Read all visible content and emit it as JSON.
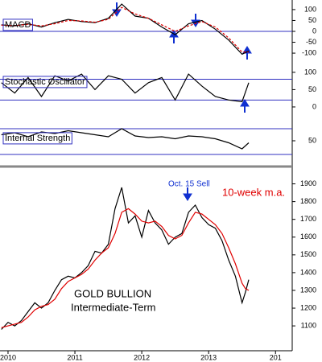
{
  "chart_data": [
    {
      "type": "line",
      "label": "MACD",
      "x": [
        2009.9,
        2010.1,
        2010.3,
        2010.5,
        2010.7,
        2010.9,
        2011.1,
        2011.3,
        2011.5,
        2011.7,
        2011.9,
        2012.1,
        2012.3,
        2012.5,
        2012.7,
        2012.9,
        2013.1,
        2013.3,
        2013.5,
        2013.6
      ],
      "xlim": [
        2009.88,
        2014.25
      ],
      "ylim": [
        -133,
        144
      ],
      "yticks": [
        100,
        50,
        0,
        -50,
        -100
      ],
      "ref_lines": [
        0
      ],
      "series": [
        {
          "color": "#000000",
          "values": [
            30,
            25,
            35,
            20,
            40,
            55,
            45,
            40,
            60,
            125,
            70,
            60,
            20,
            -15,
            35,
            50,
            10,
            -40,
            -105,
            -90
          ]
        },
        {
          "color": "#e00000",
          "dashed": true,
          "values": [
            28,
            27,
            32,
            25,
            35,
            50,
            48,
            42,
            55,
            110,
            80,
            60,
            30,
            0,
            25,
            45,
            20,
            -30,
            -95,
            -95
          ]
        }
      ]
    },
    {
      "type": "line",
      "label": "Stochastic Oscillator",
      "x": [
        2009.9,
        2010.1,
        2010.3,
        2010.5,
        2010.7,
        2010.9,
        2011.1,
        2011.3,
        2011.5,
        2011.7,
        2011.9,
        2012.1,
        2012.3,
        2012.5,
        2012.7,
        2012.9,
        2013.1,
        2013.3,
        2013.5,
        2013.6
      ],
      "xlim": [
        2009.88,
        2014.25
      ],
      "ylim": [
        -28,
        123
      ],
      "yticks": [
        100,
        50,
        0
      ],
      "ref_lines": [
        80,
        20
      ],
      "series": [
        {
          "color": "#000000",
          "values": [
            70,
            40,
            85,
            30,
            90,
            75,
            95,
            50,
            90,
            80,
            40,
            70,
            85,
            20,
            95,
            60,
            30,
            20,
            15,
            70
          ]
        }
      ]
    },
    {
      "type": "line",
      "label": "Internal Strength",
      "x": [
        2009.9,
        2010.1,
        2010.3,
        2010.5,
        2010.7,
        2010.9,
        2011.1,
        2011.3,
        2011.5,
        2011.7,
        2011.9,
        2012.1,
        2012.3,
        2012.5,
        2012.7,
        2012.9,
        2013.1,
        2013.3,
        2013.5,
        2013.6
      ],
      "xlim": [
        2009.88,
        2014.25
      ],
      "ylim": [
        0,
        100
      ],
      "yticks": [
        50
      ],
      "ref_lines": [
        80,
        16
      ],
      "series": [
        {
          "color": "#000000",
          "values": [
            65,
            70,
            60,
            72,
            68,
            75,
            70,
            65,
            60,
            80,
            62,
            58,
            60,
            55,
            62,
            60,
            55,
            45,
            30,
            45
          ]
        }
      ]
    },
    {
      "type": "line",
      "title": "GOLD BULLION",
      "subtitle": "Intermediate-Term",
      "annotation": "Oct. 15 Sell",
      "x": [
        2009.9,
        2010.0,
        2010.1,
        2010.2,
        2010.3,
        2010.4,
        2010.5,
        2010.6,
        2010.7,
        2010.8,
        2010.9,
        2011.0,
        2011.1,
        2011.2,
        2011.3,
        2011.4,
        2011.5,
        2011.6,
        2011.7,
        2011.8,
        2011.9,
        2012.0,
        2012.1,
        2012.2,
        2012.3,
        2012.4,
        2012.5,
        2012.6,
        2012.7,
        2012.8,
        2012.9,
        2013.0,
        2013.1,
        2013.2,
        2013.3,
        2013.4,
        2013.5,
        2013.55,
        2013.6
      ],
      "xlim": [
        2009.88,
        2014.25
      ],
      "xticks": [
        2010,
        2011,
        2012,
        2013,
        {
          "value": 2014,
          "label": "201"
        }
      ],
      "ylim": [
        960,
        1975
      ],
      "yticks": [
        1100,
        1200,
        1300,
        1400,
        1500,
        1600,
        1700,
        1800,
        1900
      ],
      "series": [
        {
          "color": "#000000",
          "values": [
            1080,
            1120,
            1100,
            1130,
            1180,
            1230,
            1200,
            1230,
            1300,
            1360,
            1380,
            1370,
            1400,
            1440,
            1520,
            1510,
            1560,
            1760,
            1880,
            1680,
            1720,
            1600,
            1750,
            1680,
            1640,
            1560,
            1600,
            1620,
            1740,
            1780,
            1710,
            1670,
            1650,
            1580,
            1470,
            1380,
            1230,
            1290,
            1360
          ]
        },
        {
          "name": "10-week m.a.",
          "color": "#e00000",
          "values": [
            1090,
            1100,
            1110,
            1120,
            1150,
            1190,
            1210,
            1220,
            1250,
            1310,
            1350,
            1370,
            1390,
            1420,
            1470,
            1510,
            1540,
            1620,
            1740,
            1760,
            1730,
            1690,
            1680,
            1690,
            1660,
            1610,
            1590,
            1610,
            1680,
            1740,
            1730,
            1700,
            1670,
            1620,
            1540,
            1450,
            1340,
            1310,
            1300
          ]
        }
      ]
    }
  ]
}
